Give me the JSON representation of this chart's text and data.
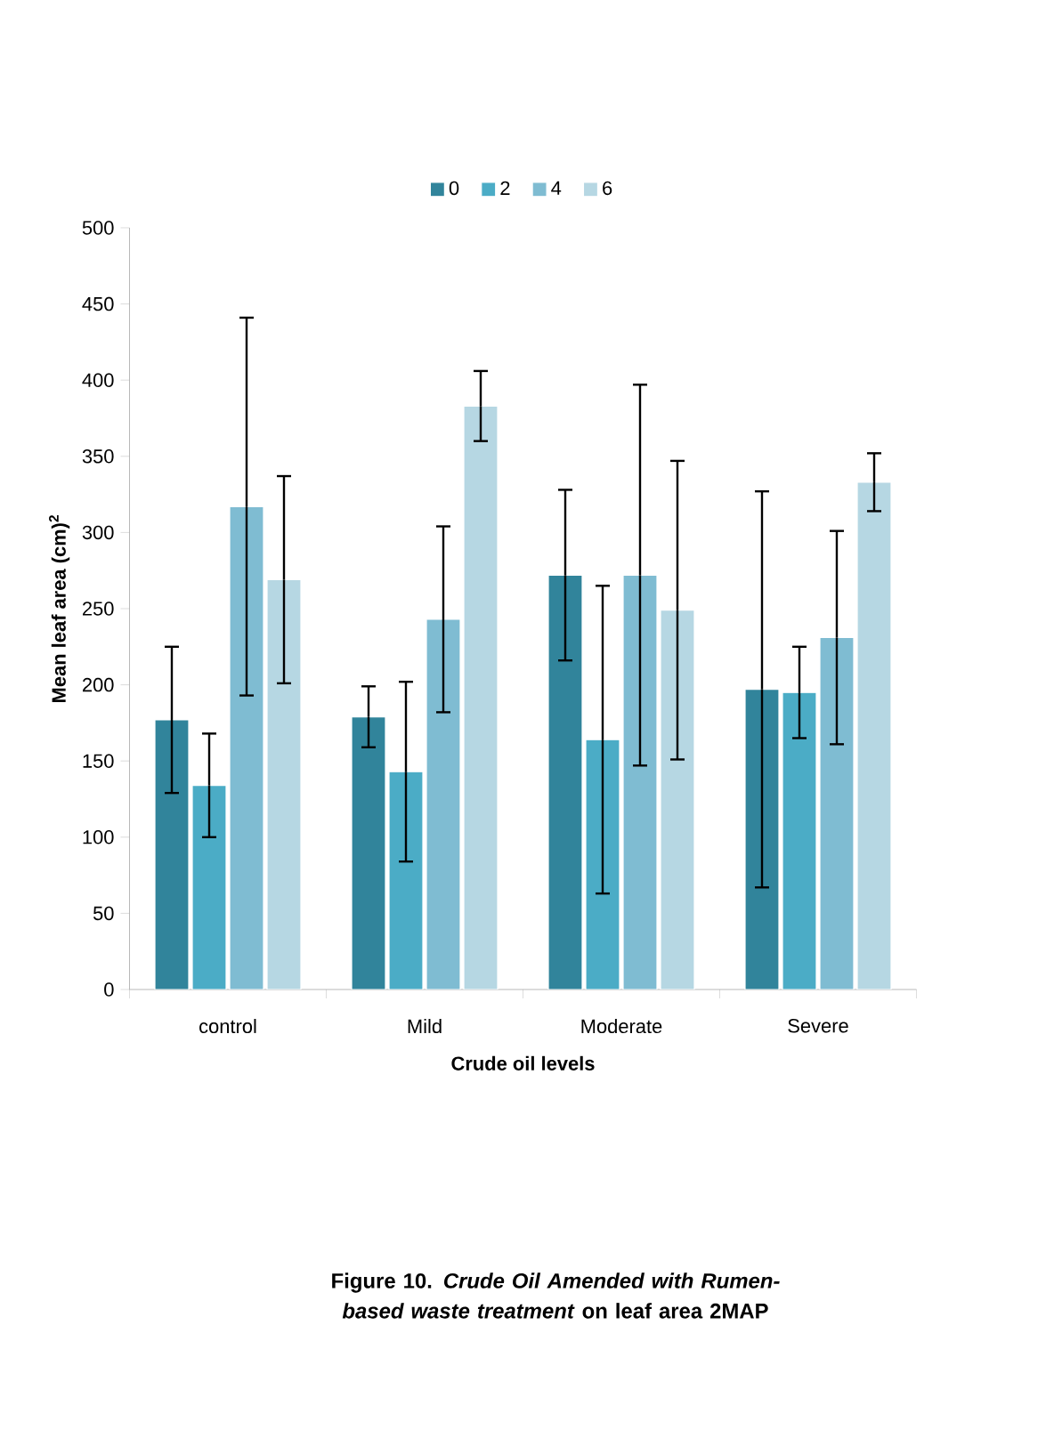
{
  "chart_data": {
    "type": "bar",
    "xlabel": "Crude oil levels",
    "ylabel": "Mean leaf area (cm)$^{2}$",
    "categories": [
      "control",
      "Mild",
      "Moderate",
      "Severe"
    ],
    "series": [
      {
        "name": "0",
        "color": "#31849b",
        "values": [
          177,
          179,
          272,
          197
        ],
        "errors": [
          48,
          20,
          56,
          130
        ]
      },
      {
        "name": "2",
        "color": "#4bacc6",
        "values": [
          134,
          143,
          164,
          195
        ],
        "errors": [
          34,
          59,
          101,
          30
        ]
      },
      {
        "name": "4",
        "color": "#7fbcd2",
        "values": [
          317,
          243,
          272,
          231
        ],
        "errors": [
          124,
          61,
          125,
          70
        ]
      },
      {
        "name": "6",
        "color": "#b6d7e3",
        "values": [
          269,
          383,
          249,
          333
        ],
        "errors": [
          68,
          23,
          98,
          19
        ]
      }
    ],
    "ylim": [
      0,
      500
    ],
    "yticks": [
      0,
      50,
      100,
      150,
      200,
      250,
      300,
      350,
      400,
      450,
      500
    ],
    "legend": "top",
    "grid": false,
    "annotations": [
      "Figure 10. *Crude Oil Amended with Rumen-based waste treatment* on leaf area 2MAP"
    ]
  }
}
